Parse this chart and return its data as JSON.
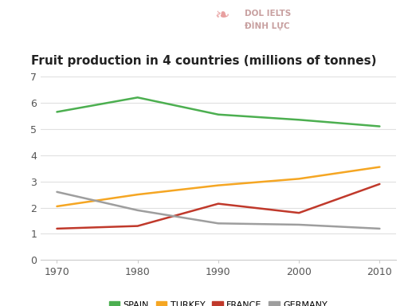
{
  "title": "Fruit production in 4 countries (millions of tonnes)",
  "years": [
    1970,
    1980,
    1990,
    2000,
    2010
  ],
  "series": {
    "SPAIN": [
      5.65,
      6.2,
      5.55,
      5.35,
      5.1
    ],
    "TURKEY": [
      2.05,
      2.5,
      2.85,
      3.1,
      3.55
    ],
    "FRANCE": [
      1.2,
      1.3,
      2.15,
      1.8,
      2.9
    ],
    "GERMANY": [
      2.6,
      1.9,
      1.4,
      1.35,
      1.2
    ]
  },
  "colors": {
    "SPAIN": "#4caf50",
    "TURKEY": "#f5a623",
    "FRANCE": "#c0392b",
    "GERMANY": "#9e9e9e"
  },
  "ylim": [
    0,
    7
  ],
  "yticks": [
    0,
    1,
    2,
    3,
    4,
    5,
    6,
    7
  ],
  "xticks": [
    1970,
    1980,
    1990,
    2000,
    2010
  ],
  "background_color": "#ffffff",
  "grid_color": "#e0e0e0",
  "title_fontsize": 11,
  "legend_fontsize": 8,
  "tick_fontsize": 9,
  "watermark_text": "DOL IELTS\nĐÌNH LỰC",
  "watermark_color": "#c8a0a0"
}
